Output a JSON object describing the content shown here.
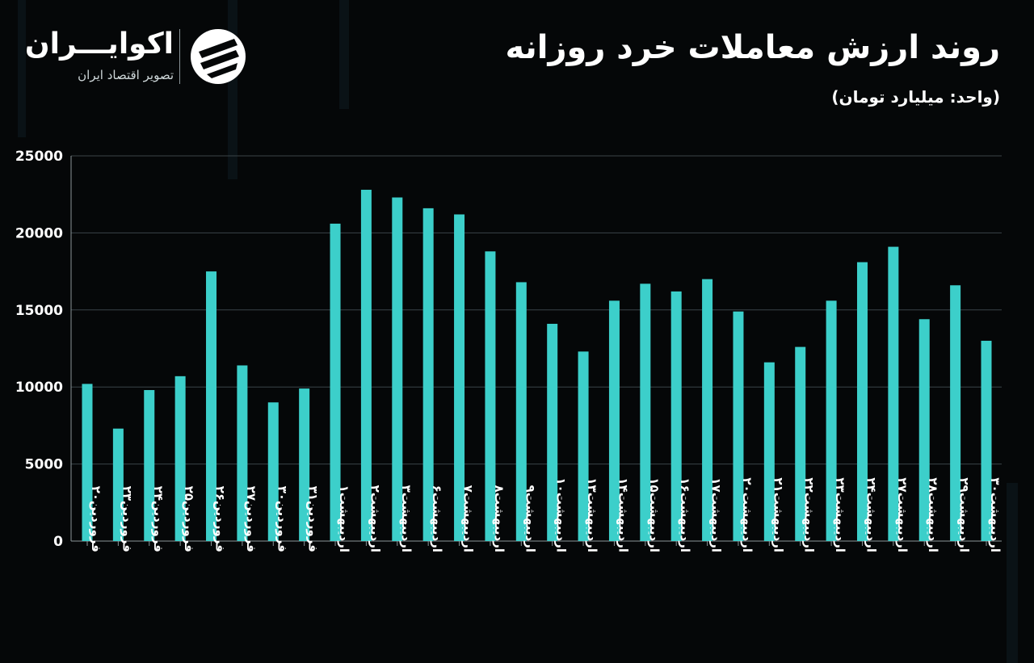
{
  "header": {
    "title": "روند ارزش معاملات خرد روزانه",
    "unit": "(واحد: میلیارد تومان)"
  },
  "brand": {
    "name": "اکوایـــران",
    "tagline": "تصویر اقتصاد ایران",
    "icon": "ekoiran-logo-icon"
  },
  "colors": {
    "background": "#050708",
    "bar": "#3ccfca",
    "grid": "#3a4448",
    "text": "#ffffff"
  },
  "chart_data": {
    "type": "bar",
    "categories": [
      "فروردین۲۰",
      "فروردین۲۳",
      "فروردین۲۴",
      "فروردین۲۵",
      "فروردین۲۶",
      "فروردین۲۷",
      "فروردین۳۰",
      "فروردین۳۱",
      "اردیبهشت۱",
      "اردیبهشت۲",
      "اردیبهشت۳",
      "اردیبهشت۶",
      "اردیبهشت۷",
      "اردیبهشت۸",
      "اردیبهشت۹",
      "اردیبهشت۱۰",
      "اردیبهشت۱۳",
      "اردیبهشت۱۴",
      "اردیبهشت۱۵",
      "اردیبهشت۱۶",
      "اردیبهشت۱۷",
      "اردیبهشت۲۰",
      "اردیبهشت۲۱",
      "اردیبهشت۲۲",
      "اردیبهشت۲۳",
      "اردیبهشت۲۴",
      "اردیبهشت۲۷",
      "اردیبهشت۲۸",
      "اردیبهشت۲۹",
      "اردیبهشت۳۰"
    ],
    "values": [
      10200,
      7300,
      9800,
      10700,
      17500,
      11400,
      9000,
      9900,
      20600,
      22800,
      22300,
      21600,
      21200,
      18800,
      16800,
      14100,
      12300,
      15600,
      16700,
      16200,
      17000,
      14900,
      11600,
      12600,
      15600,
      18100,
      19100,
      14400,
      16600,
      13000
    ],
    "ylim": [
      0,
      25000
    ],
    "yticks": [
      "0",
      "5000",
      "10000",
      "15000",
      "20000",
      "25000"
    ],
    "grid": true,
    "legend": "none"
  }
}
